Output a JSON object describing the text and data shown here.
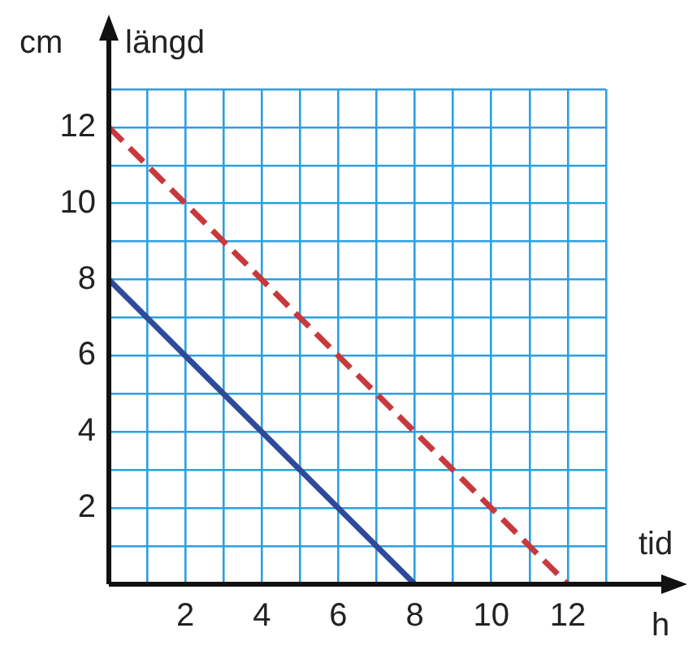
{
  "chart_data": {
    "type": "line",
    "xlabel": "tid",
    "ylabel": "längd",
    "annotations": [
      "cm",
      "h"
    ],
    "xlim": [
      0,
      13
    ],
    "ylim": [
      0,
      13
    ],
    "xticks": [
      {
        "value": 0,
        "label": null
      },
      {
        "value": 1,
        "label": null
      },
      2,
      {
        "value": 3,
        "label": null
      },
      4,
      {
        "value": 5,
        "label": null
      },
      6,
      {
        "value": 7,
        "label": null
      },
      8,
      {
        "value": 9,
        "label": null
      },
      10,
      {
        "value": 11,
        "label": null
      },
      12,
      {
        "value": 13,
        "label": null
      }
    ],
    "yticks": [
      {
        "value": 0,
        "label": null
      },
      {
        "value": 1,
        "label": null
      },
      2,
      {
        "value": 3,
        "label": null
      },
      4,
      {
        "value": 5,
        "label": null
      },
      6,
      {
        "value": 7,
        "label": null
      },
      8,
      {
        "value": 9,
        "label": null
      },
      10,
      {
        "value": 11,
        "label": null
      },
      12,
      {
        "value": 13,
        "label": null
      }
    ],
    "grid": true,
    "legend": false,
    "marker": "none",
    "series": [
      {
        "color": "#c8383c",
        "line_style": "dashed",
        "x": [
          0,
          12
        ],
        "values": [
          12,
          0
        ]
      },
      {
        "color": "#2e4a9a",
        "line_style": "solid",
        "x": [
          0,
          8
        ],
        "values": [
          8,
          0
        ]
      }
    ]
  }
}
